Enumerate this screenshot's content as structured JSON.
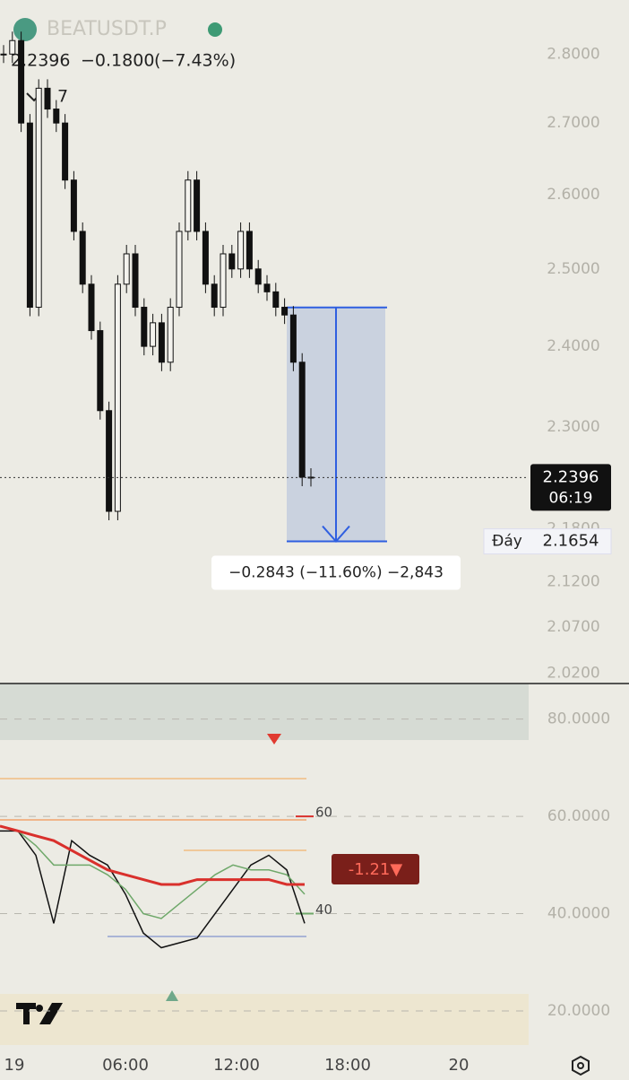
{
  "header": {
    "symbol": "BEATUSDT.P",
    "price": "2.2396",
    "change": "−0.1800",
    "change_pct": "(−7.43%)",
    "indicator_count": "7"
  },
  "chart_data": [
    {
      "type": "candlestick",
      "log": true,
      "ylim": [
        2.009,
        2.881
      ],
      "yticks": [
        {
          "value": 2.8,
          "label": "2.8000"
        },
        {
          "value": 2.7,
          "label": "2.7000"
        },
        {
          "value": 2.6,
          "label": "2.6000"
        },
        {
          "value": 2.5,
          "label": "2.5000"
        },
        {
          "value": 2.4,
          "label": "2.4000"
        },
        {
          "value": 2.3,
          "label": "2.3000"
        },
        {
          "value": 2.18,
          "label": "2.1800"
        },
        {
          "value": 2.12,
          "label": "2.1200"
        },
        {
          "value": 2.07,
          "label": "2.0700"
        },
        {
          "value": 2.02,
          "label": "2.0200"
        }
      ],
      "close": [
        2.8,
        2.82,
        2.7,
        2.45,
        2.75,
        2.72,
        2.7,
        2.62,
        2.55,
        2.48,
        2.42,
        2.32,
        2.2,
        2.48,
        2.52,
        2.45,
        2.4,
        2.43,
        2.38,
        2.45,
        2.55,
        2.62,
        2.55,
        2.48,
        2.45,
        2.52,
        2.5,
        2.55,
        2.5,
        2.48,
        2.47,
        2.45,
        2.44,
        2.38,
        2.24,
        2.2396
      ],
      "last_price": {
        "value": 2.2396,
        "label": "2.2396",
        "countdown": "06:19"
      },
      "measure": {
        "low": {
          "value": 2.1654,
          "label": "2.1654",
          "name": "Đáy"
        },
        "change": {
          "value": -0.2843,
          "label": "−0.2843 (−11.60%) −2,843"
        }
      }
    },
    {
      "type": "line",
      "ylim": [
        13.0,
        87.3
      ],
      "yticks": [
        {
          "value": 80,
          "label": "80.0000"
        },
        {
          "value": 60,
          "label": "60.0000"
        },
        {
          "value": 40,
          "label": "40.0000"
        },
        {
          "value": 20,
          "label": "20.0000"
        }
      ],
      "levels": [
        60,
        40
      ],
      "tag": "-1.21▼",
      "series": [
        {
          "color": "#111111",
          "values": [
            57,
            57,
            52,
            38,
            55,
            52,
            50,
            44,
            36,
            33,
            34,
            35,
            40,
            45,
            50,
            52,
            49,
            38
          ]
        },
        {
          "color": "#6fa86a",
          "values": [
            58,
            57,
            54,
            50,
            50,
            50,
            48,
            45,
            40,
            39,
            42,
            45,
            48,
            50,
            49,
            49,
            48,
            44
          ]
        },
        {
          "color": "#d9302c",
          "values": [
            58,
            57,
            56,
            55,
            53,
            51,
            49,
            48,
            47,
            46,
            46,
            47,
            47,
            47,
            47,
            47,
            46,
            46
          ]
        }
      ]
    }
  ],
  "time_labels": [
    "19",
    "06:00",
    "12:00",
    "18:00",
    "20"
  ]
}
